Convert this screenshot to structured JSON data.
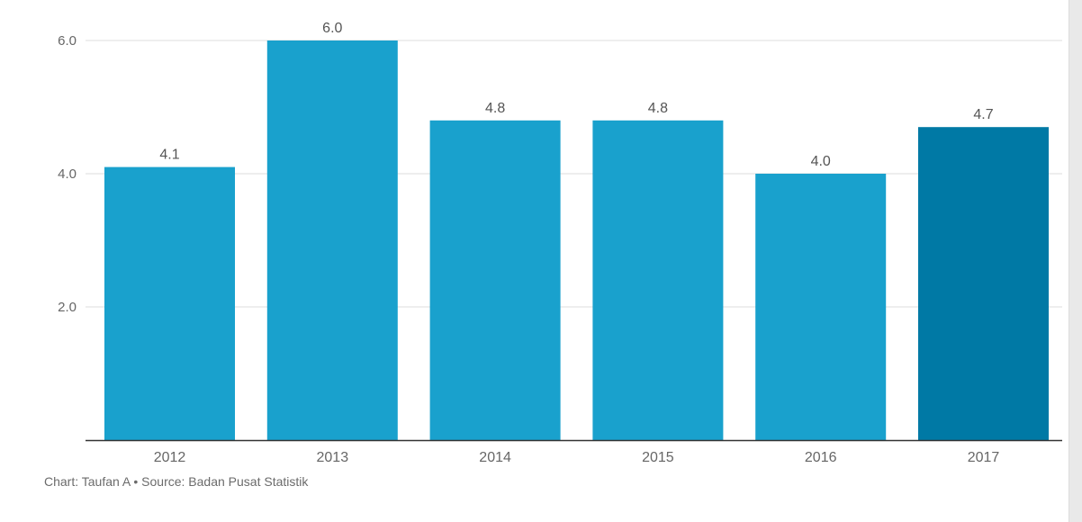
{
  "colors": {
    "bar": "#19a1cd",
    "bar_highlight": "#0079a5",
    "grid": "#dddddd",
    "axis": "#333333",
    "tick_text": "#666666",
    "label_text": "#555555"
  },
  "chart_data": {
    "type": "bar",
    "categories": [
      "2012",
      "2013",
      "2014",
      "2015",
      "2016",
      "2017"
    ],
    "values": [
      4.1,
      6.0,
      4.8,
      4.8,
      4.0,
      4.7
    ],
    "data_labels": [
      "4.1",
      "6.0",
      "4.8",
      "4.8",
      "4.0",
      "4.7"
    ],
    "highlight_category": "2017",
    "yticks": [
      "2.0",
      "4.0",
      "6.0"
    ],
    "ylim": [
      0,
      6.0
    ],
    "grid": true,
    "legend": "none"
  },
  "credit": "Chart: Taufan A • Source: Badan Pusat Statistik"
}
